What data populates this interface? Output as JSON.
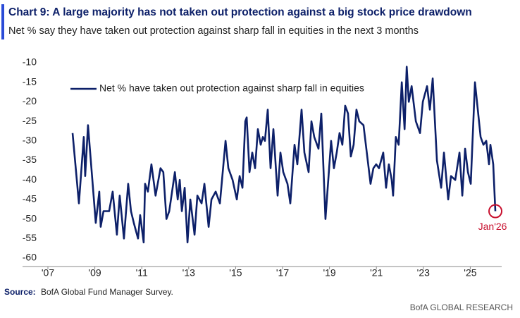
{
  "chart_data": {
    "type": "line",
    "title": "Chart 9: A large majority has not taken out protection against a big stock price drawdown",
    "subtitle": "Net % say they have taken out protection against sharp fall in equities in the next 3 months",
    "source_label": "Source:",
    "source": "BofA Global Fund Manager Survey.",
    "footer": "BofA GLOBAL RESEARCH",
    "annotation": "Jan'26",
    "legend": true,
    "grid": false,
    "series": [
      {
        "name": "Net % have taken out protection against sharp fall in equities",
        "color": "#0d2069",
        "x": [
          2008.05,
          2008.32,
          2008.53,
          2008.59,
          2008.71,
          2009.04,
          2009.19,
          2009.25,
          2009.37,
          2009.61,
          2009.76,
          2009.94,
          2010.06,
          2010.24,
          2010.42,
          2010.54,
          2010.66,
          2010.84,
          2010.93,
          2011.08,
          2011.14,
          2011.26,
          2011.41,
          2011.59,
          2011.8,
          2011.92,
          2012.05,
          2012.17,
          2012.41,
          2012.53,
          2012.62,
          2012.71,
          2012.83,
          2012.95,
          2013.07,
          2013.25,
          2013.37,
          2013.55,
          2013.67,
          2013.85,
          2013.97,
          2014.15,
          2014.33,
          2014.57,
          2014.69,
          2014.87,
          2015.05,
          2015.17,
          2015.29,
          2015.41,
          2015.47,
          2015.59,
          2015.71,
          2015.83,
          2015.95,
          2016.07,
          2016.16,
          2016.25,
          2016.37,
          2016.49,
          2016.61,
          2016.79,
          2016.91,
          2017.03,
          2017.21,
          2017.33,
          2017.51,
          2017.63,
          2017.81,
          2017.93,
          2018.11,
          2018.23,
          2018.35,
          2018.53,
          2018.65,
          2018.83,
          2019.07,
          2019.19,
          2019.31,
          2019.43,
          2019.55,
          2019.67,
          2019.79,
          2019.91,
          2020.03,
          2020.15,
          2020.27,
          2020.45,
          2020.57,
          2020.75,
          2020.87,
          2020.99,
          2021.11,
          2021.29,
          2021.41,
          2021.53,
          2021.65,
          2021.71,
          2021.83,
          2021.95,
          2022.08,
          2022.2,
          2022.29,
          2022.38,
          2022.5,
          2022.68,
          2022.86,
          2022.98,
          2023.16,
          2023.28,
          2023.4,
          2023.58,
          2023.76,
          2023.88,
          2024.06,
          2024.18,
          2024.36,
          2024.54,
          2024.66,
          2024.78,
          2024.9,
          2025.02,
          2025.2,
          2025.32,
          2025.44,
          2025.56,
          2025.68,
          2025.8,
          2025.86,
          2025.98,
          2026.07
        ],
        "values": [
          -28,
          -46,
          -29,
          -39,
          -26,
          -51,
          -43,
          -52,
          -48,
          -48,
          -43,
          -54,
          -44,
          -55,
          -41,
          -48,
          -51,
          -55,
          -49,
          -56,
          -41,
          -43,
          -36,
          -44,
          -37,
          -38,
          -50,
          -48,
          -38,
          -45,
          -40,
          -48,
          -42,
          -56,
          -45,
          -54,
          -44,
          -46,
          -41,
          -52,
          -45,
          -43,
          -46,
          -30,
          -37,
          -40,
          -45,
          -39,
          -42,
          -25,
          -24,
          -38,
          -33,
          -37,
          -27,
          -31,
          -29,
          -30,
          -22,
          -37,
          -27,
          -44,
          -33,
          -38,
          -41,
          -46,
          -31,
          -36,
          -22,
          -33,
          -38,
          -25,
          -29,
          -32,
          -23,
          -50,
          -30,
          -37,
          -33,
          -28,
          -31,
          -21,
          -23,
          -34,
          -31,
          -22,
          -25,
          -26,
          -32,
          -41,
          -37,
          -36,
          -37,
          -33,
          -42,
          -36,
          -40,
          -44,
          -29,
          -31,
          -15,
          -27,
          -11,
          -20,
          -16,
          -25,
          -28,
          -20,
          -16,
          -22,
          -14,
          -35,
          -42,
          -33,
          -45,
          -39,
          -40,
          -33,
          -44,
          -32,
          -38,
          -41,
          -15,
          -22,
          -29,
          -31,
          -30,
          -36,
          -31,
          -36,
          -48
        ]
      }
    ],
    "xlim": [
      2007,
      2026.3
    ],
    "xticks": [
      {
        "value": 2007,
        "label": "'07"
      },
      {
        "value": 2009,
        "label": "'09"
      },
      {
        "value": 2011,
        "label": "'11"
      },
      {
        "value": 2013,
        "label": "'13"
      },
      {
        "value": 2015,
        "label": "'15"
      },
      {
        "value": 2017,
        "label": "'17"
      },
      {
        "value": 2019,
        "label": "'19"
      },
      {
        "value": 2021,
        "label": "'21"
      },
      {
        "value": 2023,
        "label": "'23"
      },
      {
        "value": 2025,
        "label": "'25"
      }
    ],
    "ylim": [
      -60,
      -10
    ],
    "yticks": [
      -60,
      -55,
      -50,
      -45,
      -40,
      -35,
      -30,
      -25,
      -20,
      -15,
      -10
    ]
  }
}
